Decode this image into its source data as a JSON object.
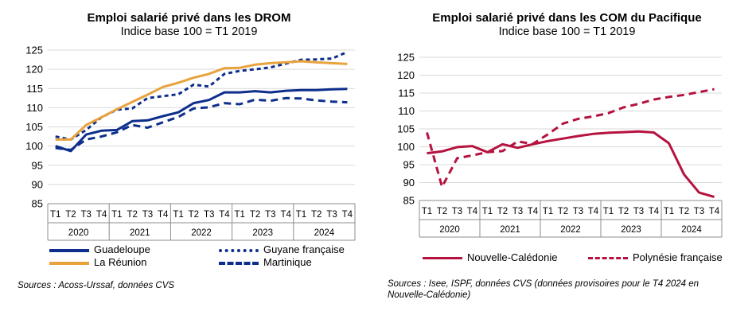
{
  "chart_data": [
    {
      "type": "line",
      "title": "Emploi salarié privé dans les DROM",
      "subtitle": "Indice base 100 = T1 2019",
      "quarters": [
        "T1",
        "T2",
        "T3",
        "T4",
        "T1",
        "T2",
        "T3",
        "T4",
        "T1",
        "T2",
        "T3",
        "T4",
        "T1",
        "T2",
        "T3",
        "T4",
        "T1",
        "T2",
        "T3",
        "T4"
      ],
      "years": [
        "2020",
        "2021",
        "2022",
        "2023",
        "2024"
      ],
      "ylim": [
        85,
        125
      ],
      "yticks": [
        85,
        90,
        95,
        100,
        105,
        110,
        115,
        120,
        125
      ],
      "grid": true,
      "series": [
        {
          "name": "Guadeloupe",
          "color": "#0d2e8c",
          "style": "solid",
          "values": [
            100.0,
            98.7,
            103.0,
            104.0,
            104.2,
            106.5,
            106.7,
            107.8,
            108.8,
            111.2,
            112.0,
            114.0,
            114.0,
            114.3,
            114.0,
            114.4,
            114.6,
            114.6,
            114.8,
            114.9
          ]
        },
        {
          "name": "Guyane française",
          "color": "#0d2e8c",
          "style": "dotted",
          "values": [
            102.5,
            101.7,
            104.2,
            107.5,
            109.5,
            109.8,
            112.5,
            113.0,
            113.5,
            116.0,
            115.5,
            118.8,
            119.6,
            120.0,
            120.5,
            121.5,
            122.5,
            122.6,
            122.8,
            124.5
          ]
        },
        {
          "name": "La Réunion",
          "color": "#e8a33d",
          "style": "solid",
          "values": [
            101.7,
            101.7,
            105.5,
            107.5,
            109.6,
            111.5,
            113.4,
            115.4,
            116.5,
            117.8,
            118.8,
            120.3,
            120.4,
            121.2,
            121.6,
            121.8,
            122.1,
            121.8,
            121.6,
            121.4
          ]
        },
        {
          "name": "Martinique",
          "color": "#0d2e8c",
          "style": "dashed",
          "values": [
            99.5,
            99.0,
            101.7,
            102.5,
            103.6,
            105.5,
            104.8,
            106.2,
            107.6,
            109.8,
            110.1,
            111.2,
            110.9,
            112.1,
            111.8,
            112.5,
            112.4,
            111.9,
            111.6,
            111.4
          ]
        }
      ]
    },
    {
      "type": "line",
      "title": "Emploi salarié privé dans les COM du Pacifique",
      "subtitle": "Indice base 100 = T1 2019",
      "quarters": [
        "T1",
        "T2",
        "T3",
        "T4",
        "T1",
        "T2",
        "T3",
        "T4",
        "T1",
        "T2",
        "T3",
        "T4",
        "T1",
        "T2",
        "T3",
        "T4",
        "T1",
        "T2",
        "T3",
        "T4"
      ],
      "years": [
        "2020",
        "2021",
        "2022",
        "2023",
        "2024"
      ],
      "ylim": [
        85,
        125
      ],
      "yticks": [
        85,
        90,
        95,
        100,
        105,
        110,
        115,
        120,
        125
      ],
      "grid": true,
      "series": [
        {
          "name": "Nouvelle-Calédonie",
          "color": "#b5123e",
          "style": "solid",
          "values": [
            98.2,
            98.7,
            99.9,
            100.2,
            98.5,
            100.7,
            99.7,
            100.7,
            101.6,
            102.3,
            103.0,
            103.6,
            103.9,
            104.1,
            104.3,
            104.0,
            101.0,
            92.3,
            87.2,
            86.0
          ]
        },
        {
          "name": "Polynésie française",
          "color": "#b5123e",
          "style": "dashed",
          "values": [
            104.0,
            88.8,
            96.8,
            97.6,
            98.5,
            98.8,
            101.5,
            100.8,
            103.5,
            106.5,
            107.8,
            108.5,
            109.4,
            111.0,
            112.0,
            113.2,
            113.9,
            114.5,
            115.3,
            116.1
          ]
        }
      ]
    }
  ],
  "sources": {
    "left": "Sources : Acoss-Urssaf, données CVS",
    "right_line1": "Sources : Isee, ISPF, données CVS (données provisoires pour le T4 2024 en",
    "right_line2": "Nouvelle-Calédonie)"
  }
}
